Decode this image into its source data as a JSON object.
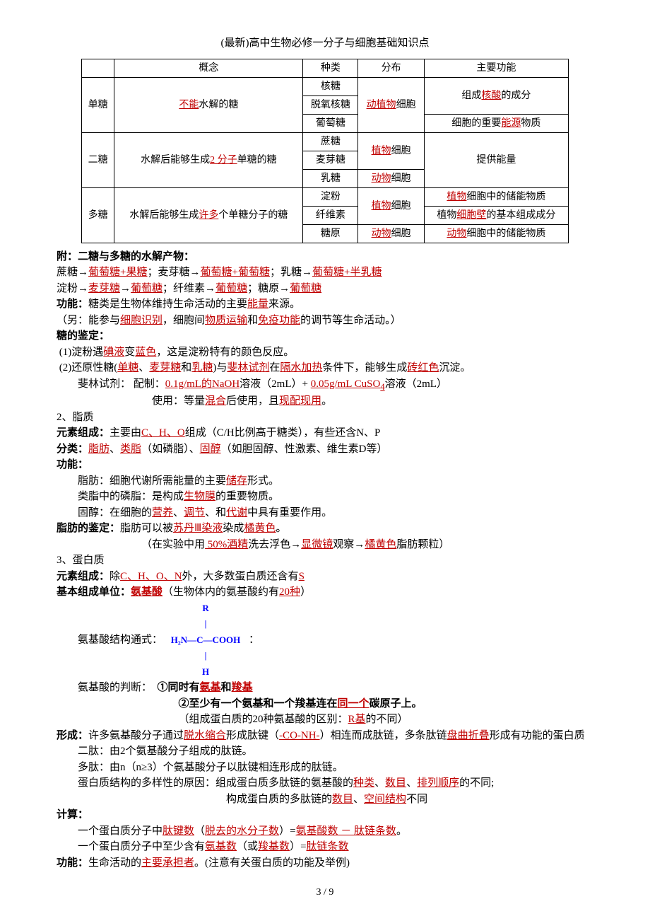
{
  "title": "(最新)高中生物必修一分子与细胞基础知识点",
  "table": {
    "header": [
      "",
      "概念",
      "种类",
      "分布",
      "主要功能"
    ],
    "rows": [
      {
        "cat": "单糖",
        "concept_pre": "",
        "concept_hl": "不能",
        "concept_post": "水解的糖",
        "types": [
          "核糖",
          "脱氧核糖",
          "葡萄糖"
        ],
        "dist_pre": "",
        "dist_hl": "动植物",
        "dist_post": "细胞",
        "func1_pre": "组成",
        "func1_hl": "核酸",
        "func1_post": "的成分",
        "func2_pre": "细胞的重要",
        "func2_hl": "能源",
        "func2_post": "物质"
      },
      {
        "cat": "二糖",
        "concept_pre": "水解后能够生成",
        "concept_hl": "2 分子",
        "concept_post": "单糖的糖",
        "types": [
          "蔗糖",
          "麦芽糖",
          "乳糖"
        ],
        "dist1_hl": "植物",
        "dist1_post": "细胞",
        "dist2_hl": "动物",
        "dist2_post": "细胞",
        "func": "提供能量"
      },
      {
        "cat": "多糖",
        "concept_pre": "水解后能够生成",
        "concept_hl": "许多",
        "concept_post": "个单糖分子的糖",
        "types": [
          "淀粉",
          "纤维素",
          "糖原"
        ],
        "dist1_hl": "植物",
        "dist1_post": "细胞",
        "dist2_hl": "动物",
        "dist2_post": "细胞",
        "f1_hl": "植物",
        "f1_post": "细胞中的储能物质",
        "f2_pre": "植物",
        "f2_hl": "细胞壁",
        "f2_post": "的基本组成成分",
        "f3_hl": "动物",
        "f3_post": "细胞中的储能物质"
      }
    ]
  },
  "hydrolysis": {
    "heading": "附：二糖与多糖的水解产物：",
    "line1_a": "蔗糖→",
    "line1_b": "葡萄糖+果糖",
    "line1_c": "；麦芽糖→",
    "line1_d": "葡萄糖+葡萄糖",
    "line1_e": "；乳糖→",
    "line1_f": "葡萄糖+半乳糖",
    "line2_a": "淀粉→",
    "line2_b": "麦芽糖",
    "line2_c": "→",
    "line2_d": "葡萄糖",
    "line2_e": "；纤维素→",
    "line2_f": "葡萄糖",
    "line2_g": "；糖原→",
    "line2_h": "葡萄糖"
  },
  "func_sugar": {
    "label": "功能：",
    "pre": "糖类是生物体维持生命活动的主要",
    "hl": "能量",
    "post": "来源。"
  },
  "func_sugar_note": {
    "pre": "（另：能参与",
    "a": "细胞识别",
    "mid1": "，细胞间",
    "b": "物质运输",
    "mid2": "和",
    "c": "免疫功能",
    "post": "的调节等生命活动。）"
  },
  "sugar_test": {
    "heading": "糖的鉴定：",
    "l1_a": "(1)淀粉遇",
    "l1_b": "碘液",
    "l1_c": "变",
    "l1_d": "蓝色",
    "l1_e": "，这是淀粉特有的颜色反应。",
    "l2_a": "(2)还原性糖(",
    "l2_b": "单糖",
    "l2_c": "、",
    "l2_d": "麦芽糖",
    "l2_e": "和",
    "l2_f": "乳糖",
    "l2_g": ")与",
    "l2_h": "斐林试剂",
    "l2_i": "在",
    "l2_j": "隔水加热",
    "l2_k": "条件下，能够生成",
    "l2_l": "砖红色",
    "l2_m": "沉淀。",
    "l3_a": "斐林试剂：  配制：",
    "l3_b": "0.1g/mL的NaOH",
    "l3_c": "溶液（2mL）+ ",
    "l3_d": " 0.05g/mL CuSO",
    "l3_sub": "4",
    "l3_e": "溶液（2mL）",
    "l4_a": "使用：等量",
    "l4_b": "混合",
    "l4_c": "后使用，且",
    "l4_d": "现配现用",
    "l4_e": "。"
  },
  "lipid": {
    "heading": "2、脂质",
    "elem_label": "元素组成：",
    "elem_a": "主要由",
    "elem_b": "C、H、O",
    "elem_c": "组成（C/H比例高于糖类），有些还含N、P",
    "cls_label": "分类：",
    "cls_a": "脂肪",
    "cls_b": "、",
    "cls_c": "类脂",
    "cls_d": "（如磷脂）、",
    "cls_e": "固醇",
    "cls_f": "（如胆固醇、性激素、维生素D等）",
    "func_label": "功能：",
    "f1_a": "脂肪：细胞代谢所需能量的主要",
    "f1_b": "储存",
    "f1_c": "形式。",
    "f2_a": "类脂中的磷脂：是构成",
    "f2_b": "生物膜",
    "f2_c": "的重要物质。",
    "f3_a": "固醇：在细胞的",
    "f3_b": "营养",
    "f3_c": "、",
    "f3_d": "调节",
    "f3_e": "、和",
    "f3_f": "代谢",
    "f3_g": "中具有重要作用。",
    "test_label": "脂肪的鉴定：",
    "test_a": "脂肪可以被",
    "test_b": "苏丹Ⅲ染液",
    "test_c": "染成",
    "test_d": "橘黄色",
    "test_e": "。",
    "test2_a": "（在实验中用",
    "test2_b": " 50%酒精",
    "test2_c": "洗去浮色→",
    "test2_d": "显微镜",
    "test2_e": "观察→",
    "test2_f": "橘黄色",
    "test2_g": "脂肪颗粒）"
  },
  "protein": {
    "heading": "3、蛋白质",
    "elem_label": "元素组成：",
    "elem_a": "除",
    "elem_b": "C、H、O、N",
    "elem_c": "外，大多数蛋白质还含有",
    "elem_d": "S",
    "unit_label": "基本组成单位：",
    "unit_a": "氨基酸",
    "unit_b": "（生物体内的氨基酸约有",
    "unit_c": "20种",
    "unit_d": "）",
    "formula_label": "氨基酸结构通式：",
    "formula_r": "R",
    "formula_main": "H₂N—C—COOH",
    "formula_h": "H",
    "formula_colon": "：",
    "judge_label": "氨基酸的判断：",
    "judge1_a": "①同时有",
    "judge1_b": "氨基",
    "judge1_c": "和",
    "judge1_d": "羧基",
    "judge2_a": "②至少有一个氨基和一个羧基连在",
    "judge2_b": "同一个",
    "judge2_c": "碳原子上。",
    "judge3_a": "（组成蛋白质的20种氨基酸的区别：",
    "judge3_b": "R基",
    "judge3_c": "的不同）",
    "form_label": "形成：",
    "form_a": "许多氨基酸分子通过",
    "form_b": "脱水缩合",
    "form_c": "形成肽键（",
    "form_d": "-CO-NH-",
    "form_e": "）相连而成肽链，多条肽链",
    "form_f": "盘曲折叠",
    "form_g": "形成有功能的蛋白质",
    "dipep": "二肽：由2个氨基酸分子组成的肽链。",
    "polypep": "多肽：由n（n≥3）个氨基酸分子以肽键相连形成的肽链。",
    "div_a": "蛋白质结构的多样性的原因：组成蛋白质多肽链的氨基酸的",
    "div_b": "种类",
    "div_c": "、",
    "div_d": "数目",
    "div_e": "、",
    "div_f": "排列顺序",
    "div_g": "的不同;",
    "div2_a": "构成蛋白质的多肽链的",
    "div2_b": "数目",
    "div2_c": "、",
    "div2_d": "空间结构",
    "div2_e": "不同",
    "calc_label": "计算：",
    "calc1_a": "一个蛋白质分子中",
    "calc1_b": "肽键数",
    "calc1_c": "（",
    "calc1_d": "脱去的水分子数",
    "calc1_e": "）=",
    "calc1_f": "氨基酸数 － 肽链条数",
    "calc1_g": "。",
    "calc2_a": "一个蛋白质分子中至少含有",
    "calc2_b": "氨基数",
    "calc2_c": "（或",
    "calc2_d": "羧基数",
    "calc2_e": "）=",
    "calc2_f": "肽链条数",
    "pfunc_label": "功能：",
    "pfunc_a": "生命活动的",
    "pfunc_b": "主要承担者",
    "pfunc_c": "。(注意有关蛋白质的功能及举例)"
  },
  "page_num": "3 / 9"
}
